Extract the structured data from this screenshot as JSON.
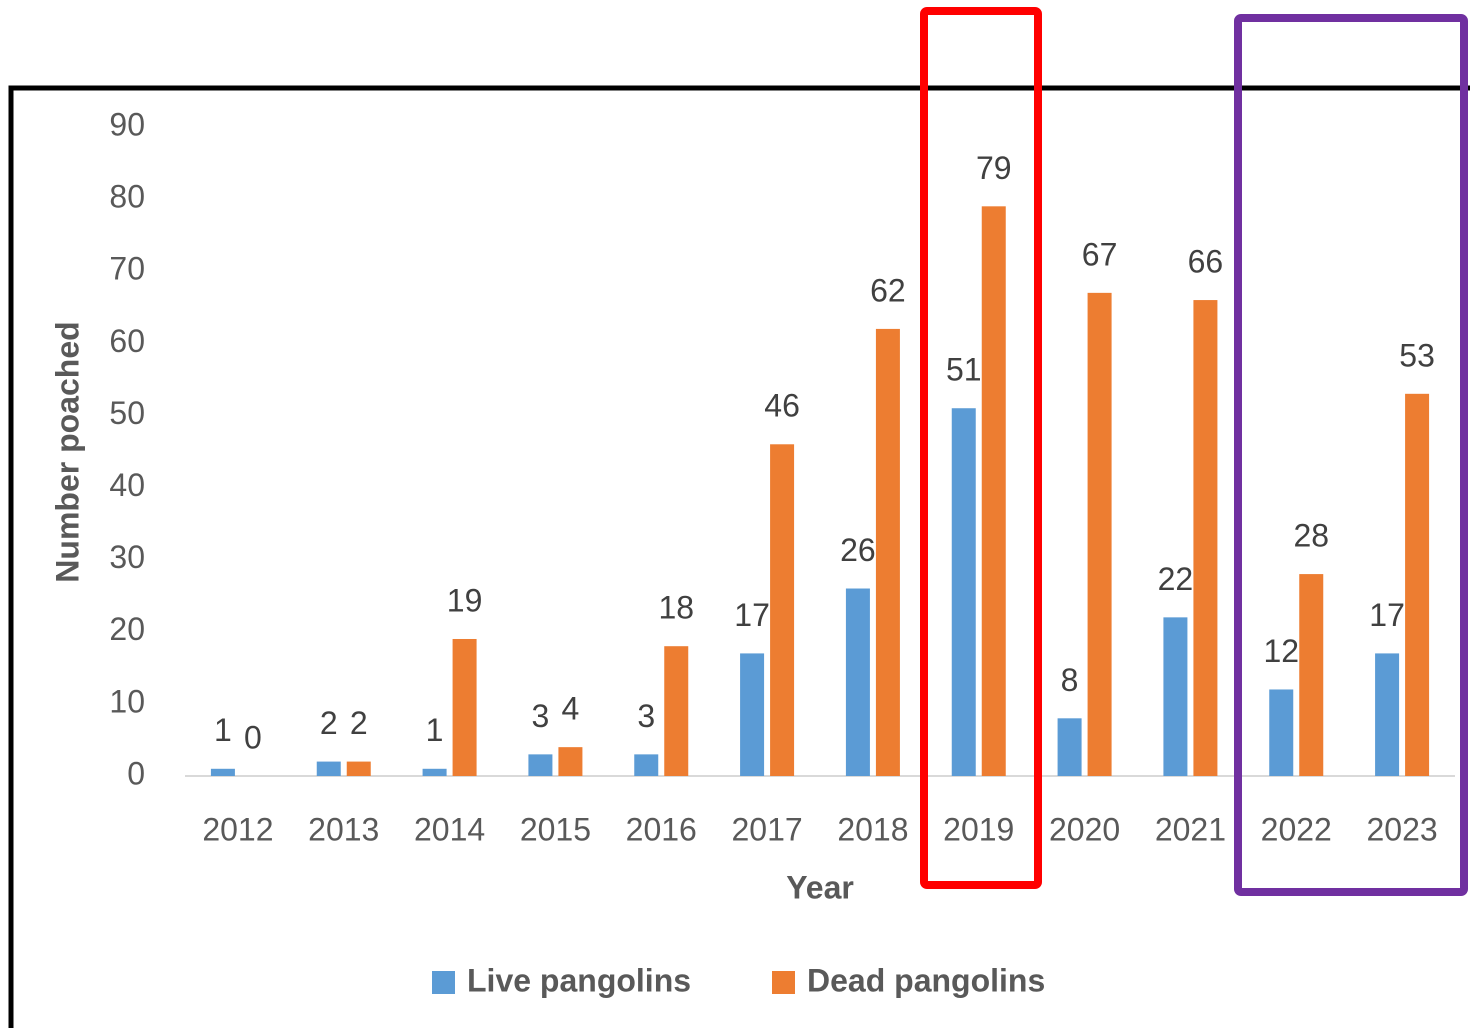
{
  "chart_data": {
    "type": "bar",
    "x_label": "Year",
    "y_label": "Number  poached",
    "categories": [
      "2012",
      "2013",
      "2014",
      "2015",
      "2016",
      "2017",
      "2018",
      "2019",
      "2020",
      "2021",
      "2022",
      "2023"
    ],
    "series": [
      {
        "name": "Live pangolins",
        "color": "#5b9bd5",
        "values": [
          1,
          2,
          1,
          3,
          3,
          17,
          26,
          51,
          8,
          22,
          12,
          17
        ]
      },
      {
        "name": "Dead pangolins",
        "color": "#ed7d31",
        "values": [
          0,
          2,
          19,
          4,
          18,
          46,
          62,
          79,
          67,
          66,
          28,
          53
        ]
      }
    ],
    "ylim": [
      0,
      90
    ],
    "yticks": [
      0,
      10,
      20,
      30,
      40,
      50,
      60,
      70,
      80,
      90
    ],
    "legend": "bottom"
  }
}
